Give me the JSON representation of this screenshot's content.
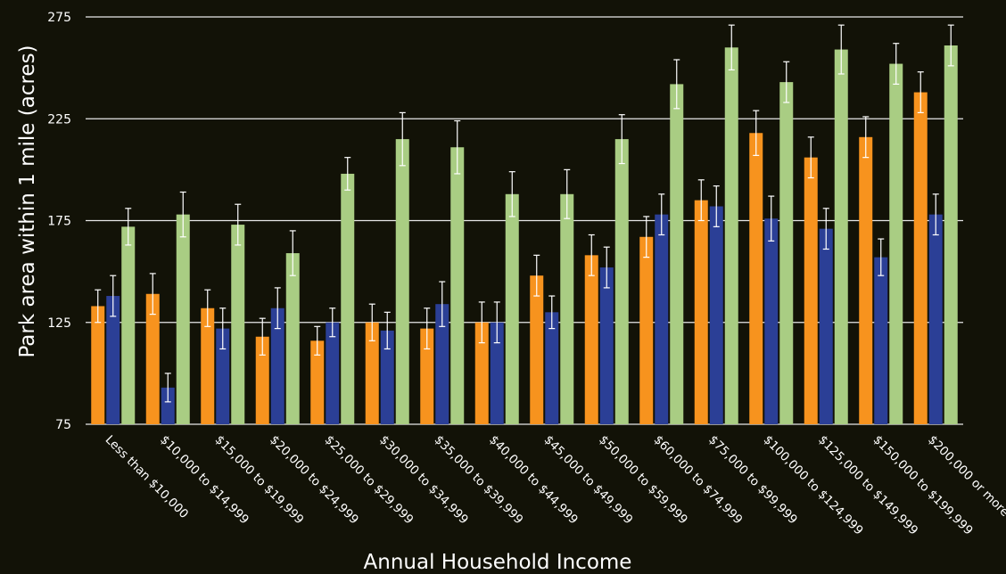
{
  "chart_data": {
    "type": "bar",
    "title": "",
    "xlabel": "Annual Household Income",
    "ylabel": "Park area within 1 mile (acres)",
    "ylim": [
      75,
      275
    ],
    "yticks": [
      75,
      125,
      175,
      225,
      275
    ],
    "grid": true,
    "legend": "none",
    "categories": [
      "Less than $10,000",
      "$10,000 to $14,999",
      "$15,000 to $19,999",
      "$20,000 to $24,999",
      "$25,000 to $29,999",
      "$30,000 to $34,999",
      "$35,000 to $39,999",
      "$40,000 to $44,999",
      "$45,000 to $49,999",
      "$50,000 to $59,999",
      "$60,000 to $74,999",
      "$75,000 to $99,999",
      "$100,000 to $124,999",
      "$125,000 to $149,999",
      "$150,000 to $199,999",
      "$200,000 or more"
    ],
    "series": [
      {
        "color": "#f7931e",
        "values": [
          133,
          139,
          132,
          118,
          116,
          125,
          122,
          125,
          148,
          158,
          167,
          185,
          218,
          206,
          216,
          238
        ],
        "error": [
          8,
          10,
          9,
          9,
          7,
          9,
          10,
          10,
          10,
          10,
          10,
          10,
          11,
          10,
          10,
          10
        ]
      },
      {
        "color": "#2b3f96",
        "values": [
          138,
          93,
          122,
          132,
          125,
          121,
          134,
          125,
          130,
          152,
          178,
          182,
          176,
          171,
          157,
          178
        ],
        "error": [
          10,
          7,
          10,
          10,
          7,
          9,
          11,
          10,
          8,
          10,
          10,
          10,
          11,
          10,
          9,
          10
        ]
      },
      {
        "color": "#a9cd83",
        "values": [
          172,
          178,
          173,
          159,
          198,
          215,
          211,
          188,
          188,
          215,
          242,
          260,
          243,
          259,
          252,
          261
        ],
        "error": [
          9,
          11,
          10,
          11,
          8,
          13,
          13,
          11,
          12,
          12,
          12,
          11,
          10,
          12,
          10,
          10
        ]
      }
    ],
    "colors": {
      "background": "#121207",
      "grid": "#e8e8e8",
      "error_bar": "#ffffff"
    }
  }
}
